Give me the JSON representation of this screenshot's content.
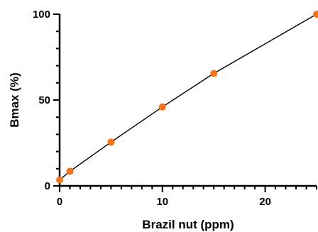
{
  "chart_data": {
    "type": "scatter",
    "title": "",
    "xlabel": "Brazil nut (ppm)",
    "ylabel": "Bmax (%)",
    "xlim": [
      0,
      25
    ],
    "ylim": [
      0,
      100
    ],
    "x_ticks": [
      0,
      10,
      20
    ],
    "y_ticks": [
      0,
      50,
      100
    ],
    "x_minor_step": 1,
    "y_minor_step": 10,
    "grid": false,
    "legend": "none",
    "series": [
      {
        "color": "#F97316",
        "line_color": "#000000",
        "points": [
          {
            "x": 0,
            "y": 3.5
          },
          {
            "x": 1,
            "y": 8.5
          },
          {
            "x": 5,
            "y": 25.5
          },
          {
            "x": 10,
            "y": 46
          },
          {
            "x": 15,
            "y": 65.5
          },
          {
            "x": 25,
            "y": 100
          }
        ]
      }
    ]
  }
}
